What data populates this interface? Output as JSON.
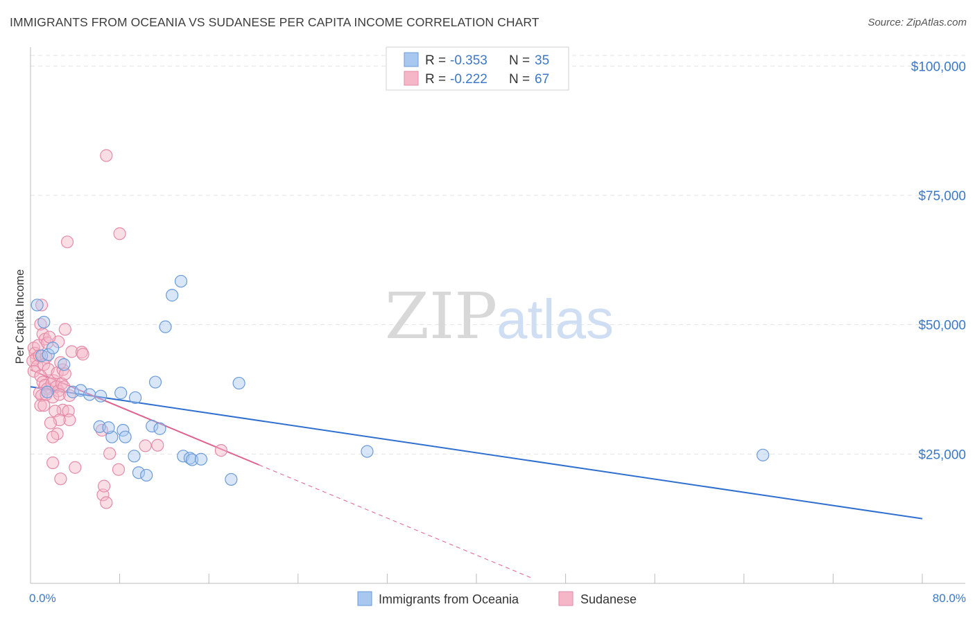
{
  "title": "IMMIGRANTS FROM OCEANIA VS SUDANESE PER CAPITA INCOME CORRELATION CHART",
  "source": "Source: ZipAtlas.com",
  "watermark": {
    "zip": "ZIP",
    "atlas": "atlas"
  },
  "colors": {
    "blue_fill": "#a8c8f0",
    "blue_stroke": "#6a9bd8",
    "blue_line": "#2f6fcf",
    "pink_fill": "#f5b6c8",
    "pink_stroke": "#e58aa6",
    "pink_line": "#e0608e",
    "grid": "#e3e3e3",
    "axis_text": "#3b78c9"
  },
  "legend": {
    "series": [
      {
        "r_label": "R =",
        "r_value": "-0.353",
        "n_label": "N =",
        "n_value": "35"
      },
      {
        "r_label": "R =",
        "r_value": "-0.222",
        "n_label": "N =",
        "n_value": "67"
      }
    ]
  },
  "bottom_legend": [
    "Immigrants from Oceania",
    "Sudanese"
  ],
  "chart_data": {
    "type": "scatter",
    "title": "IMMIGRANTS FROM OCEANIA VS SUDANESE PER CAPITA INCOME CORRELATION CHART",
    "xlabel": "",
    "ylabel": "Per Capita Income",
    "xlim": [
      0,
      80
    ],
    "ylim": [
      0,
      105000
    ],
    "x_tick_labels": [
      "0.0%",
      "80.0%"
    ],
    "y_ticks": [
      25000,
      50000,
      75000,
      100000
    ],
    "y_tick_labels": [
      "$25,000",
      "$50,000",
      "$75,000",
      "$100,000"
    ],
    "series": [
      {
        "name": "Immigrants from Oceania",
        "color": "blue",
        "points": [
          [
            0.6,
            53800
          ],
          [
            1.2,
            50500
          ],
          [
            1.0,
            44000
          ],
          [
            1.6,
            44200
          ],
          [
            2.0,
            45500
          ],
          [
            3.0,
            42300
          ],
          [
            3.8,
            37000
          ],
          [
            4.5,
            37300
          ],
          [
            5.3,
            36500
          ],
          [
            6.3,
            36200
          ],
          [
            6.2,
            30300
          ],
          [
            7.3,
            28300
          ],
          [
            8.1,
            36800
          ],
          [
            7.0,
            30100
          ],
          [
            8.3,
            29600
          ],
          [
            8.5,
            28300
          ],
          [
            9.3,
            24600
          ],
          [
            9.4,
            35900
          ],
          [
            9.7,
            21400
          ],
          [
            10.4,
            20900
          ],
          [
            10.9,
            30400
          ],
          [
            11.2,
            38900
          ],
          [
            11.6,
            29900
          ],
          [
            12.1,
            49600
          ],
          [
            12.7,
            55700
          ],
          [
            13.5,
            58400
          ],
          [
            13.7,
            24600
          ],
          [
            14.3,
            24200
          ],
          [
            14.5,
            23900
          ],
          [
            15.3,
            24000
          ],
          [
            18.0,
            20100
          ],
          [
            18.7,
            38700
          ],
          [
            30.2,
            25500
          ],
          [
            65.7,
            24800
          ],
          [
            1.5,
            37000
          ]
        ],
        "trend": {
          "x": [
            0,
            80
          ],
          "y": [
            38000,
            12500
          ]
        }
      },
      {
        "name": "Sudanese",
        "color": "pink",
        "points": [
          [
            0.3,
            45500
          ],
          [
            0.4,
            44500
          ],
          [
            0.5,
            43500
          ],
          [
            0.2,
            43000
          ],
          [
            0.6,
            42000
          ],
          [
            0.3,
            41000
          ],
          [
            0.7,
            46000
          ],
          [
            0.8,
            44000
          ],
          [
            1.0,
            53800
          ],
          [
            0.9,
            50100
          ],
          [
            1.1,
            48200
          ],
          [
            1.3,
            47200
          ],
          [
            1.5,
            46500
          ],
          [
            1.4,
            43700
          ],
          [
            1.2,
            42300
          ],
          [
            1.6,
            41400
          ],
          [
            0.9,
            40100
          ],
          [
            1.1,
            38900
          ],
          [
            1.3,
            38300
          ],
          [
            1.5,
            37600
          ],
          [
            0.8,
            36800
          ],
          [
            1.0,
            36300
          ],
          [
            0.9,
            34400
          ],
          [
            1.2,
            34400
          ],
          [
            1.9,
            38600
          ],
          [
            2.1,
            39200
          ],
          [
            2.3,
            38000
          ],
          [
            2.5,
            37200
          ],
          [
            2.8,
            38600
          ],
          [
            3.0,
            38000
          ],
          [
            2.4,
            40700
          ],
          [
            2.9,
            41300
          ],
          [
            3.1,
            40500
          ],
          [
            2.0,
            36000
          ],
          [
            2.6,
            36500
          ],
          [
            2.9,
            33500
          ],
          [
            2.2,
            33300
          ],
          [
            3.4,
            33300
          ],
          [
            3.5,
            31600
          ],
          [
            2.6,
            31600
          ],
          [
            1.8,
            31000
          ],
          [
            2.4,
            28900
          ],
          [
            2.0,
            28300
          ],
          [
            2.7,
            42700
          ],
          [
            2.5,
            46700
          ],
          [
            1.7,
            47600
          ],
          [
            3.7,
            44800
          ],
          [
            4.6,
            44700
          ],
          [
            4.7,
            44300
          ],
          [
            3.1,
            49100
          ],
          [
            6.4,
            29600
          ],
          [
            6.5,
            17100
          ],
          [
            6.6,
            18800
          ],
          [
            6.8,
            15600
          ],
          [
            7.1,
            25100
          ],
          [
            7.9,
            22000
          ],
          [
            10.3,
            26600
          ],
          [
            11.4,
            26700
          ],
          [
            4.0,
            22400
          ],
          [
            2.0,
            23300
          ],
          [
            2.7,
            20200
          ],
          [
            3.3,
            66000
          ],
          [
            8.0,
            67600
          ],
          [
            6.8,
            82700
          ],
          [
            17.1,
            25700
          ],
          [
            1.4,
            36500
          ],
          [
            3.5,
            36300
          ]
        ],
        "trend": {
          "x": [
            0,
            20.5
          ],
          "y": [
            41300,
            22900
          ]
        },
        "trend_dashed": {
          "x": [
            20.5,
            45
          ],
          "y": [
            22900,
            1000
          ]
        }
      }
    ]
  }
}
